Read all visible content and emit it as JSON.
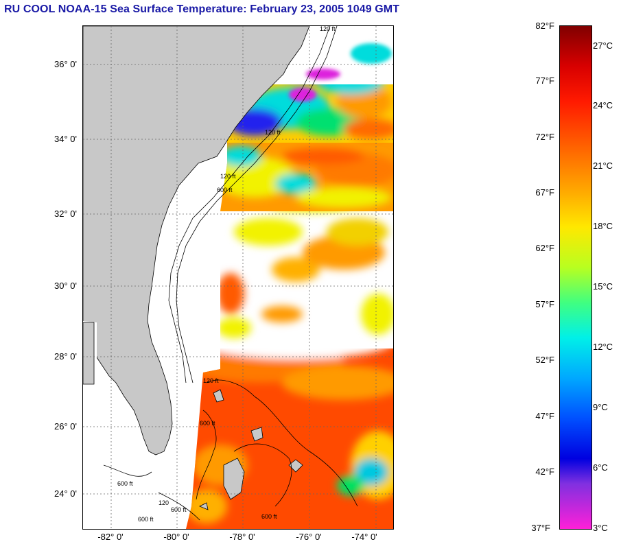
{
  "title": "RU COOL  NOAA-15  Sea Surface Temperature:  February 23, 2005 1049 GMT",
  "map": {
    "lat_labels": [
      "36° 0'",
      "34° 0'",
      "32° 0'",
      "30° 0'",
      "28° 0'",
      "26° 0'",
      "24° 0'"
    ],
    "lon_labels": [
      "-82° 0'",
      "-80° 0'",
      "-78° 0'",
      "-76° 0'",
      "-74° 0'"
    ],
    "contour_labels": [
      "120 ft",
      "120 ft",
      "600 ft",
      "120 ft",
      "120 ft",
      "600 ft",
      "600 ft",
      "600 ft",
      "120",
      "600 ft",
      "600 ft"
    ],
    "colors": {
      "land": "#c8c8c8",
      "cloud": "#ffffff",
      "warm": "#ff4a00",
      "orange": "#ff9a00",
      "yellow": "#f2f200",
      "cyan": "#00dcdc",
      "blue": "#2222ee",
      "magenta": "#dd22dd"
    }
  },
  "colorbar": {
    "fahrenheit_labels": [
      "82°F",
      "77°F",
      "72°F",
      "67°F",
      "62°F",
      "57°F",
      "52°F",
      "47°F",
      "42°F",
      "37°F"
    ],
    "celsius_labels": [
      "27°C",
      "24°C",
      "21°C",
      "18°C",
      "15°C",
      "12°C",
      "9°C",
      "6°C",
      "3°C"
    ]
  }
}
